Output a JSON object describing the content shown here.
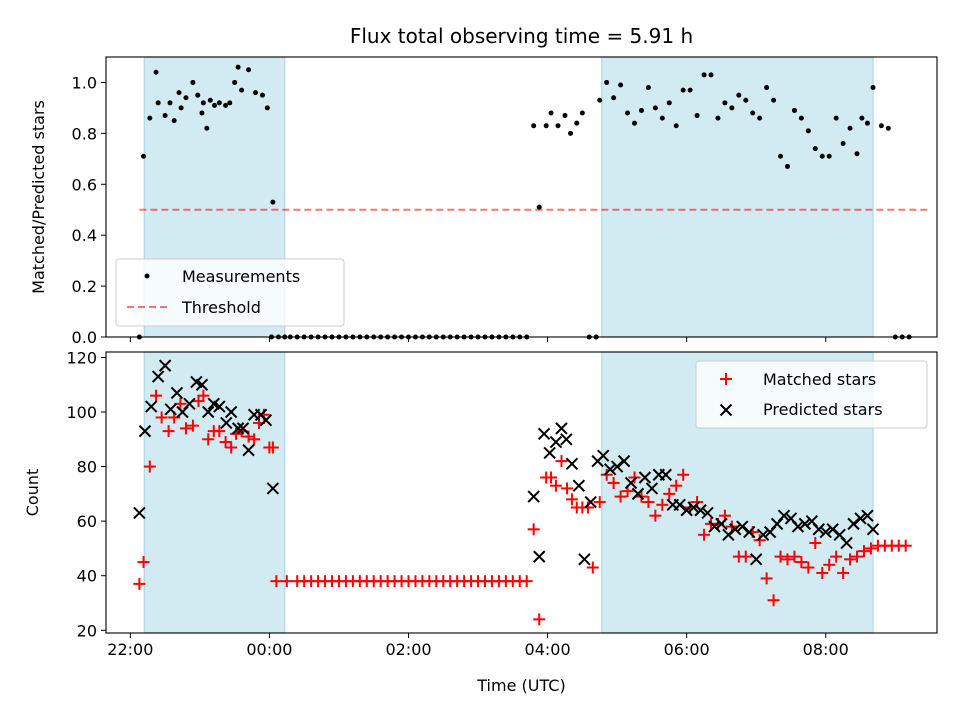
{
  "colors": {
    "shade": "#add8e6",
    "measurement": "#000000",
    "threshold": "#ff0000",
    "matched": "#ff0000",
    "predicted": "#000000"
  },
  "chart_data": [
    {
      "type": "scatter",
      "title": "Flux total observing time = 5.91 h",
      "xlabel": "",
      "ylabel": "Matched/Predicted stars",
      "xlim": [
        -2.35,
        9.6
      ],
      "ylim": [
        0,
        1.1
      ],
      "x_ticks": [
        -2,
        0,
        2,
        4,
        6,
        8
      ],
      "x_tick_labels": [
        "",
        "",
        "",
        "",
        "",
        ""
      ],
      "y_ticks": [
        0.0,
        0.2,
        0.4,
        0.6,
        0.8,
        1.0
      ],
      "y_tick_labels": [
        "0.0",
        "0.2",
        "0.4",
        "0.6",
        "0.8",
        "1.0"
      ],
      "shaded_intervals": [
        [
          -1.8,
          0.22
        ],
        [
          4.78,
          8.68
        ]
      ],
      "legend": {
        "position": "lower-left",
        "entries": [
          "Measurements",
          "Threshold"
        ]
      },
      "threshold": {
        "name": "Threshold",
        "y": 0.5,
        "x_range": [
          -1.87,
          9.52
        ]
      },
      "series": [
        {
          "name": "Measurements",
          "x": [
            -1.87,
            -1.81,
            -1.72,
            -1.63,
            -1.5,
            -1.43,
            -1.37,
            -1.3,
            -1.2,
            -1.1,
            -1.03,
            -0.97,
            -0.9,
            -0.85,
            -0.79,
            -0.72,
            -0.63,
            -0.57,
            -0.5,
            -0.4,
            -0.3,
            -0.2,
            -0.1,
            -0.03,
            0.05,
            0.13,
            0.22,
            0.3,
            -1.6,
            -1.27,
            -0.95,
            -0.45,
            0.03,
            0.4,
            0.5,
            0.6,
            0.7,
            0.8,
            0.9,
            1.0,
            1.1,
            1.2,
            1.3,
            1.4,
            1.5,
            1.6,
            1.7,
            1.8,
            1.9,
            2.0,
            2.1,
            2.2,
            2.3,
            2.4,
            2.5,
            2.6,
            2.7,
            2.8,
            2.9,
            3.0,
            3.1,
            3.2,
            3.3,
            3.4,
            3.5,
            3.6,
            3.7,
            3.8,
            3.88,
            3.98,
            4.05,
            4.15,
            4.25,
            4.33,
            4.42,
            4.5,
            4.6,
            4.7,
            4.75,
            4.85,
            4.95,
            5.05,
            5.15,
            5.25,
            5.35,
            5.45,
            5.55,
            5.65,
            5.75,
            5.85,
            5.95,
            6.05,
            6.15,
            6.25,
            6.35,
            6.45,
            6.55,
            6.65,
            6.75,
            6.85,
            6.95,
            7.05,
            7.15,
            7.25,
            7.35,
            7.45,
            7.55,
            7.65,
            7.75,
            7.85,
            7.95,
            8.05,
            8.15,
            8.25,
            8.35,
            8.45,
            8.52,
            8.6,
            8.68,
            8.8,
            8.9,
            9.0,
            9.1,
            9.2
          ],
          "y": [
            0.0,
            0.71,
            0.86,
            1.04,
            0.87,
            0.92,
            0.85,
            0.96,
            0.94,
            1.0,
            0.95,
            0.88,
            0.82,
            0.93,
            0.91,
            0.92,
            0.91,
            0.92,
            1.0,
            0.97,
            1.05,
            0.96,
            0.95,
            0.9,
            0.53,
            0.0,
            0.0,
            0.0,
            0.92,
            0.9,
            0.92,
            1.06,
            0.0,
            0.0,
            0.0,
            0.0,
            0.0,
            0.0,
            0.0,
            0.0,
            0.0,
            0.0,
            0.0,
            0.0,
            0.0,
            0.0,
            0.0,
            0.0,
            0.0,
            0.0,
            0.0,
            0.0,
            0.0,
            0.0,
            0.0,
            0.0,
            0.0,
            0.0,
            0.0,
            0.0,
            0.0,
            0.0,
            0.0,
            0.0,
            0.0,
            0.0,
            0.0,
            0.83,
            0.51,
            0.83,
            0.88,
            0.83,
            0.87,
            0.8,
            0.84,
            0.88,
            0.0,
            0.0,
            0.93,
            1.0,
            0.94,
            0.99,
            0.88,
            0.84,
            0.89,
            0.98,
            0.9,
            0.86,
            0.92,
            0.83,
            0.97,
            0.97,
            0.87,
            1.03,
            1.03,
            0.86,
            0.92,
            0.9,
            0.95,
            0.93,
            0.88,
            0.86,
            0.98,
            0.93,
            0.71,
            0.67,
            0.89,
            0.86,
            0.81,
            0.74,
            0.71,
            0.71,
            0.86,
            0.76,
            0.82,
            0.72,
            0.86,
            0.84,
            0.98,
            0.83,
            0.82,
            0.0,
            0.0,
            0.0
          ]
        }
      ]
    },
    {
      "type": "scatter",
      "title": "",
      "xlabel": "Time (UTC)",
      "ylabel": "Count",
      "xlim": [
        -2.35,
        9.6
      ],
      "ylim": [
        19,
        122
      ],
      "x_ticks": [
        -2,
        0,
        2,
        4,
        6,
        8
      ],
      "x_tick_labels": [
        "22:00",
        "00:00",
        "02:00",
        "04:00",
        "06:00",
        "08:00"
      ],
      "y_ticks": [
        20,
        40,
        60,
        80,
        100,
        120
      ],
      "y_tick_labels": [
        "20",
        "40",
        "60",
        "80",
        "100",
        "120"
      ],
      "shaded_intervals": [
        [
          -1.8,
          0.22
        ],
        [
          4.78,
          8.68
        ]
      ],
      "legend": {
        "position": "upper-right",
        "entries": [
          "Matched stars",
          "Predicted stars"
        ]
      },
      "series": [
        {
          "name": "Matched stars",
          "marker": "+",
          "x": [
            -1.87,
            -1.81,
            -1.72,
            -1.63,
            -1.55,
            -1.45,
            -1.37,
            -1.28,
            -1.2,
            -1.1,
            -1.02,
            -0.95,
            -0.88,
            -0.8,
            -0.72,
            -0.63,
            -0.55,
            -0.48,
            -0.4,
            -0.3,
            -0.22,
            -0.15,
            -0.08,
            0.0,
            0.05,
            0.1,
            0.25,
            0.4,
            0.5,
            0.6,
            0.7,
            0.8,
            0.9,
            1.0,
            1.1,
            1.2,
            1.3,
            1.4,
            1.5,
            1.6,
            1.7,
            1.8,
            1.9,
            2.0,
            2.1,
            2.2,
            2.3,
            2.4,
            2.5,
            2.6,
            2.7,
            2.8,
            2.9,
            3.0,
            3.1,
            3.2,
            3.3,
            3.4,
            3.5,
            3.6,
            3.7,
            3.8,
            3.88,
            3.98,
            4.05,
            4.12,
            4.2,
            4.28,
            4.35,
            4.42,
            4.5,
            4.58,
            4.65,
            4.75,
            4.85,
            4.95,
            5.05,
            5.15,
            5.25,
            5.35,
            5.45,
            5.55,
            5.65,
            5.75,
            5.85,
            5.95,
            6.05,
            6.15,
            6.25,
            6.35,
            6.45,
            6.55,
            6.65,
            6.75,
            6.85,
            6.95,
            7.05,
            7.15,
            7.25,
            7.35,
            7.45,
            7.55,
            7.65,
            7.75,
            7.85,
            7.95,
            8.05,
            8.15,
            8.25,
            8.35,
            8.45,
            8.55,
            8.65,
            8.75,
            8.85,
            8.95,
            9.05,
            9.15
          ],
          "y": [
            37,
            45,
            80,
            106,
            98,
            93,
            98,
            103,
            94,
            95,
            104,
            106,
            90,
            93,
            93,
            89,
            87,
            92,
            93,
            91,
            90,
            96,
            99,
            87,
            87,
            38,
            38,
            38,
            38,
            38,
            38,
            38,
            38,
            38,
            38,
            38,
            38,
            38,
            38,
            38,
            38,
            38,
            38,
            38,
            38,
            38,
            38,
            38,
            38,
            38,
            38,
            38,
            38,
            38,
            38,
            38,
            38,
            38,
            38,
            38,
            38,
            57,
            24,
            76,
            76,
            73,
            82,
            72,
            68,
            65,
            65,
            65,
            43,
            67,
            77,
            74,
            69,
            71,
            76,
            69,
            67,
            62,
            66,
            70,
            73,
            77,
            65,
            67,
            55,
            59,
            59,
            62,
            58,
            47,
            47,
            56,
            53,
            39,
            31,
            47,
            46,
            47,
            45,
            43,
            52,
            41,
            44,
            47,
            41,
            46,
            47,
            49,
            50,
            51,
            51,
            51,
            51,
            51
          ]
        },
        {
          "name": "Predicted stars",
          "marker": "x",
          "x": [
            -1.87,
            -1.79,
            -1.7,
            -1.6,
            -1.5,
            -1.42,
            -1.33,
            -1.25,
            -1.15,
            -1.05,
            -0.97,
            -0.88,
            -0.8,
            -0.72,
            -0.62,
            -0.55,
            -0.45,
            -0.38,
            -0.3,
            -0.22,
            -0.12,
            -0.05,
            0.05,
            3.8,
            3.88,
            3.95,
            4.03,
            4.12,
            4.2,
            4.27,
            4.35,
            4.45,
            4.53,
            4.62,
            4.72,
            4.8,
            4.9,
            5.0,
            5.1,
            5.2,
            5.3,
            5.4,
            5.5,
            5.6,
            5.7,
            5.8,
            5.9,
            6.0,
            6.1,
            6.2,
            6.3,
            6.4,
            6.5,
            6.6,
            6.7,
            6.8,
            6.9,
            7.0,
            7.1,
            7.2,
            7.3,
            7.4,
            7.5,
            7.6,
            7.7,
            7.8,
            7.9,
            8.0,
            8.1,
            8.2,
            8.3,
            8.4,
            8.5,
            8.6,
            8.68
          ],
          "y": [
            63,
            93,
            102,
            113,
            117,
            101,
            107,
            100,
            103,
            111,
            110,
            100,
            103,
            102,
            96,
            100,
            94,
            94,
            86,
            99,
            99,
            97,
            72,
            69,
            47,
            92,
            85,
            89,
            94,
            90,
            81,
            73,
            46,
            67,
            82,
            84,
            79,
            80,
            82,
            74,
            70,
            76,
            72,
            77,
            77,
            66,
            66,
            64,
            65,
            64,
            63,
            58,
            59,
            55,
            57,
            58,
            56,
            46,
            55,
            56,
            59,
            62,
            61,
            58,
            59,
            60,
            57,
            56,
            57,
            55,
            52,
            59,
            61,
            62,
            57
          ]
        }
      ]
    }
  ]
}
